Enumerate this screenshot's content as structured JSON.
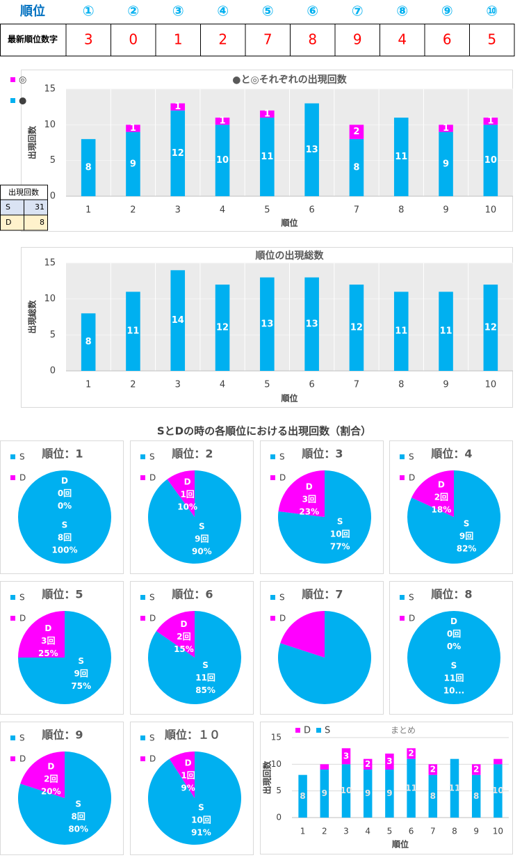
{
  "header_table": {
    "corner": "順位",
    "columns": [
      "①",
      "②",
      "③",
      "④",
      "⑤",
      "⑥",
      "⑦",
      "⑧",
      "⑨",
      "⑩"
    ],
    "row_label": "最新順位数字",
    "values": [
      3,
      0,
      1,
      2,
      7,
      8,
      9,
      4,
      6,
      5
    ]
  },
  "count_table": {
    "header": "出現回数",
    "rows": [
      [
        "S",
        31
      ],
      [
        "D",
        8
      ]
    ]
  },
  "pie_section_title": "SとDの時の各順位における出現回数（割合）",
  "chart_data": [
    {
      "type": "stacked_bar",
      "title": "●と◎それぞれの出現回数",
      "x_label": "順位",
      "y_label": "出現回数",
      "categories": [
        "1",
        "2",
        "3",
        "4",
        "5",
        "6",
        "7",
        "8",
        "9",
        "10"
      ],
      "series": [
        {
          "name": "●",
          "color": "#00b0f0",
          "values": [
            8,
            9,
            12,
            10,
            11,
            13,
            8,
            11,
            9,
            10
          ]
        },
        {
          "name": "◎",
          "color": "#ff00ff",
          "values": [
            null,
            1,
            1,
            1,
            1,
            null,
            2,
            null,
            1,
            1
          ]
        }
      ],
      "ylim": [
        0,
        15
      ],
      "yticks": [
        0,
        5,
        10,
        15
      ]
    },
    {
      "type": "bar",
      "title": "順位の出現総数",
      "x_label": "順位",
      "y_label": "出現総数",
      "categories": [
        "1",
        "2",
        "3",
        "4",
        "5",
        "6",
        "7",
        "8",
        "9",
        "10"
      ],
      "series": [
        {
          "name": "出現総数",
          "color": "#00b0f0",
          "values": [
            8,
            11,
            14,
            12,
            13,
            13,
            12,
            11,
            11,
            12
          ]
        }
      ],
      "ylim": [
        0,
        15
      ],
      "yticks": [
        0,
        5,
        10,
        15
      ]
    },
    {
      "type": "pie",
      "title": "順位：1",
      "categories": [
        "S",
        "D"
      ],
      "colors": [
        "#00b0f0",
        "#ff00ff"
      ],
      "values": [
        8,
        0
      ],
      "value_labels": [
        "8回",
        "0回"
      ],
      "percent_labels": [
        "100%",
        "0%"
      ]
    },
    {
      "type": "pie",
      "title": "順位：2",
      "categories": [
        "S",
        "D"
      ],
      "colors": [
        "#00b0f0",
        "#ff00ff"
      ],
      "values": [
        9,
        1
      ],
      "value_labels": [
        "9回",
        "1回"
      ],
      "percent_labels": [
        "90%",
        "10%"
      ]
    },
    {
      "type": "pie",
      "title": "順位：3",
      "categories": [
        "S",
        "D"
      ],
      "colors": [
        "#00b0f0",
        "#ff00ff"
      ],
      "values": [
        10,
        3
      ],
      "value_labels": [
        "10回",
        "3回"
      ],
      "percent_labels": [
        "77%",
        "23%"
      ]
    },
    {
      "type": "pie",
      "title": "順位：4",
      "categories": [
        "S",
        "D"
      ],
      "colors": [
        "#00b0f0",
        "#ff00ff"
      ],
      "values": [
        9,
        2
      ],
      "value_labels": [
        "9回",
        "2回"
      ],
      "percent_labels": [
        "82%",
        "18%"
      ]
    },
    {
      "type": "pie",
      "title": "順位：5",
      "categories": [
        "S",
        "D"
      ],
      "colors": [
        "#00b0f0",
        "#ff00ff"
      ],
      "values": [
        9,
        3
      ],
      "value_labels": [
        "9回",
        "3回"
      ],
      "percent_labels": [
        "75%",
        "25%"
      ]
    },
    {
      "type": "pie",
      "title": "順位：6",
      "categories": [
        "S",
        "D"
      ],
      "colors": [
        "#00b0f0",
        "#ff00ff"
      ],
      "values": [
        11,
        2
      ],
      "value_labels": [
        "11回",
        "2回"
      ],
      "percent_labels": [
        "85%",
        "15%"
      ]
    },
    {
      "type": "pie",
      "title": "順位：7",
      "categories": [
        "S",
        "D"
      ],
      "colors": [
        "#00b0f0",
        "#ff00ff"
      ],
      "values": [
        8,
        2
      ]
    },
    {
      "type": "pie",
      "title": "順位：8",
      "categories": [
        "S",
        "D"
      ],
      "colors": [
        "#00b0f0",
        "#ff00ff"
      ],
      "values": [
        11,
        0
      ],
      "value_labels": [
        "11回",
        "0回"
      ],
      "percent_labels": [
        "10...",
        "0%"
      ]
    },
    {
      "type": "pie",
      "title": "順位：9",
      "categories": [
        "S",
        "D"
      ],
      "colors": [
        "#00b0f0",
        "#ff00ff"
      ],
      "values": [
        8,
        2
      ],
      "value_labels": [
        "8回",
        "2回"
      ],
      "percent_labels": [
        "80%",
        "20%"
      ]
    },
    {
      "type": "pie",
      "title": "順位：１０",
      "categories": [
        "S",
        "D"
      ],
      "colors": [
        "#00b0f0",
        "#ff00ff"
      ],
      "values": [
        10,
        1
      ],
      "value_labels": [
        "10回",
        "1回"
      ],
      "percent_labels": [
        "91%",
        "9%"
      ]
    },
    {
      "type": "stacked_bar",
      "title": "まとめ",
      "x_label": "順位",
      "y_label": "出現回数",
      "categories": [
        "1",
        "2",
        "3",
        "4",
        "5",
        "6",
        "7",
        "8",
        "9",
        "10"
      ],
      "series": [
        {
          "name": "S",
          "color": "#00b0f0",
          "values": [
            8,
            9,
            10,
            9,
            9,
            11,
            8,
            11,
            8,
            10
          ]
        },
        {
          "name": "D",
          "color": "#ff00ff",
          "values": [
            0,
            1,
            3,
            2,
            3,
            2,
            2,
            0,
            2,
            1
          ]
        }
      ],
      "ylim": [
        0,
        15
      ],
      "yticks": [
        0,
        5,
        10,
        15
      ]
    }
  ]
}
